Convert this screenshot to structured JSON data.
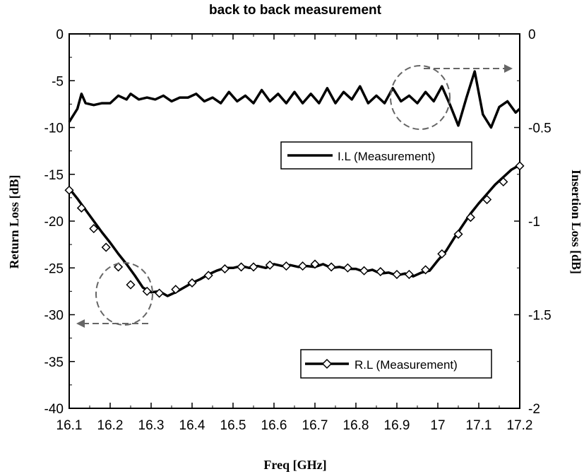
{
  "chart_data": {
    "type": "line",
    "title": "back to back measurement",
    "xlabel": "Freq [GHz]",
    "ylabel_left": "Return Loss [dB]",
    "ylabel_right": "Insertion Loss [dB]",
    "xlim": [
      16.1,
      17.2
    ],
    "ylim_left": [
      -40,
      0
    ],
    "ylim_right": [
      -2,
      0
    ],
    "xticks": [
      "16.1",
      "16.2",
      "16.3",
      "16.4",
      "16.5",
      "16.6",
      "16.7",
      "16.8",
      "16.9",
      "17",
      "17.1",
      "17.2"
    ],
    "yticks_left": [
      "0",
      "-5",
      "-10",
      "-15",
      "-20",
      "-25",
      "-30",
      "-35",
      "-40"
    ],
    "yticks_right": [
      "0",
      "-0.5",
      "-1",
      "-1.5",
      "-2"
    ],
    "grid": false,
    "series": [
      {
        "name": "I.L (Measurement)",
        "axis": "right",
        "color": "#000000",
        "marker": "none",
        "x": [
          16.1,
          16.12,
          16.13,
          16.14,
          16.16,
          16.18,
          16.2,
          16.22,
          16.24,
          16.25,
          16.27,
          16.29,
          16.31,
          16.33,
          16.35,
          16.37,
          16.39,
          16.41,
          16.43,
          16.45,
          16.47,
          16.49,
          16.51,
          16.53,
          16.55,
          16.57,
          16.59,
          16.61,
          16.63,
          16.65,
          16.67,
          16.69,
          16.71,
          16.73,
          16.75,
          16.77,
          16.79,
          16.81,
          16.83,
          16.85,
          16.87,
          16.89,
          16.91,
          16.93,
          16.95,
          16.97,
          16.99,
          17.01,
          17.03,
          17.05,
          17.07,
          17.09,
          17.11,
          17.13,
          17.15,
          17.17,
          17.19,
          17.2
        ],
        "y": [
          -0.47,
          -0.4,
          -0.32,
          -0.37,
          -0.38,
          -0.37,
          -0.37,
          -0.33,
          -0.35,
          -0.32,
          -0.35,
          -0.34,
          -0.35,
          -0.33,
          -0.36,
          -0.34,
          -0.34,
          -0.32,
          -0.36,
          -0.34,
          -0.37,
          -0.31,
          -0.36,
          -0.33,
          -0.37,
          -0.3,
          -0.36,
          -0.32,
          -0.37,
          -0.31,
          -0.37,
          -0.32,
          -0.37,
          -0.29,
          -0.37,
          -0.31,
          -0.35,
          -0.28,
          -0.37,
          -0.33,
          -0.37,
          -0.29,
          -0.36,
          -0.33,
          -0.37,
          -0.31,
          -0.36,
          -0.28,
          -0.38,
          -0.49,
          -0.34,
          -0.2,
          -0.43,
          -0.5,
          -0.39,
          -0.36,
          -0.42,
          -0.4
        ]
      },
      {
        "name": "R.L (Measurement)",
        "axis": "left",
        "color": "#000000",
        "marker": "diamond",
        "x": [
          16.1,
          16.12,
          16.14,
          16.16,
          16.18,
          16.2,
          16.22,
          16.24,
          16.26,
          16.28,
          16.3,
          16.32,
          16.34,
          16.36,
          16.38,
          16.4,
          16.42,
          16.44,
          16.46,
          16.48,
          16.5,
          16.52,
          16.54,
          16.56,
          16.58,
          16.6,
          16.62,
          16.64,
          16.66,
          16.68,
          16.7,
          16.72,
          16.74,
          16.76,
          16.78,
          16.8,
          16.82,
          16.84,
          16.86,
          16.88,
          16.9,
          16.92,
          16.94,
          16.96,
          16.98,
          17.0,
          17.02,
          17.04,
          17.06,
          17.08,
          17.1,
          17.12,
          17.14,
          17.16,
          17.18,
          17.2
        ],
        "y": [
          -16.5,
          -17.6,
          -18.8,
          -20.0,
          -21.2,
          -22.3,
          -23.5,
          -24.6,
          -25.8,
          -27.1,
          -27.6,
          -27.5,
          -28.0,
          -27.6,
          -27.1,
          -26.6,
          -26.2,
          -25.7,
          -25.3,
          -25.0,
          -25.0,
          -24.8,
          -25.0,
          -24.8,
          -25.0,
          -24.6,
          -24.8,
          -24.7,
          -24.9,
          -24.8,
          -24.9,
          -24.6,
          -25.0,
          -24.9,
          -25.1,
          -25.1,
          -25.4,
          -25.2,
          -25.6,
          -25.5,
          -25.8,
          -25.6,
          -25.9,
          -25.5,
          -25.3,
          -24.2,
          -23.2,
          -21.8,
          -20.5,
          -19.2,
          -18.1,
          -17.1,
          -16.1,
          -15.3,
          -14.5,
          -14.0
        ]
      }
    ],
    "markers": {
      "series": "R.L (Measurement)",
      "x": [
        16.1,
        16.13,
        16.16,
        16.19,
        16.22,
        16.25,
        16.29,
        16.32,
        16.36,
        16.4,
        16.44,
        16.48,
        16.52,
        16.55,
        16.59,
        16.63,
        16.67,
        16.7,
        16.74,
        16.78,
        16.82,
        16.86,
        16.9,
        16.93,
        16.97,
        17.01,
        17.05,
        17.08,
        17.12,
        17.16,
        17.2
      ],
      "y": [
        -16.7,
        -18.6,
        -20.8,
        -22.8,
        -24.9,
        -26.8,
        -27.5,
        -27.7,
        -27.3,
        -26.6,
        -25.8,
        -25.1,
        -24.9,
        -24.9,
        -24.7,
        -24.8,
        -24.8,
        -24.6,
        -24.9,
        -25.0,
        -25.3,
        -25.4,
        -25.7,
        -25.7,
        -25.2,
        -23.5,
        -21.4,
        -19.6,
        -17.7,
        -15.8,
        -14.1
      ]
    },
    "legend": [
      "I.L (Measurement)",
      "R.L (Measurement)"
    ]
  }
}
